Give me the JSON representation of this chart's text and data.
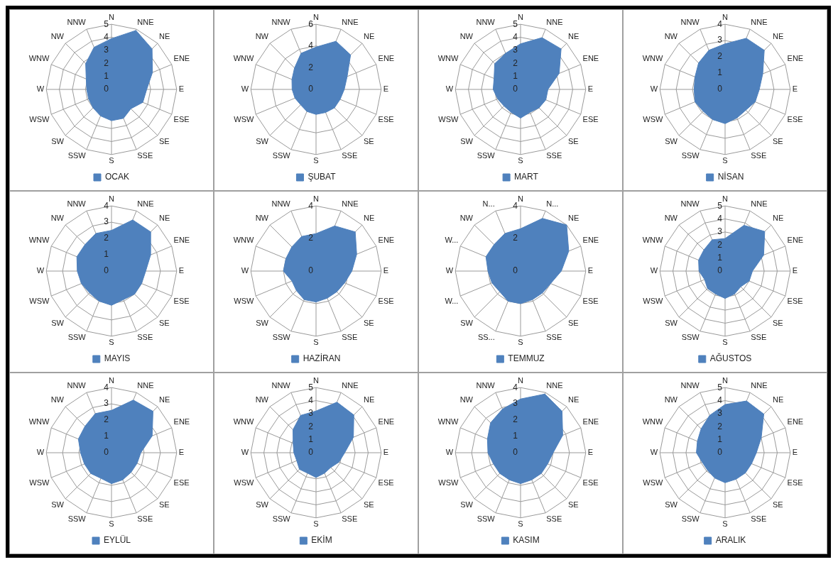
{
  "chart_data": [
    {
      "type": "radar",
      "categories": [
        "N",
        "NNE",
        "NE",
        "ENE",
        "E",
        "ESE",
        "SE",
        "SSE",
        "S",
        "SSW",
        "SW",
        "WSW",
        "W",
        "WNW",
        "NW",
        "NNW"
      ],
      "series": [
        {
          "name": "OCAK",
          "color": "#4f81bd",
          "values": [
            3.9,
            4.9,
            4.4,
            3.4,
            2.7,
            2.6,
            2.1,
            2.4,
            2.4,
            2.2,
            2.0,
            1.9,
            1.9,
            2.1,
            2.8,
            3.5
          ]
        }
      ],
      "ylim": [
        0,
        5
      ],
      "yticks": [
        0,
        1,
        2,
        3,
        4,
        5
      ],
      "grid": true,
      "legend": "bottom",
      "marker": "none"
    },
    {
      "type": "radar",
      "categories": [
        "N",
        "NNE",
        "NE",
        "ENE",
        "E",
        "ESE",
        "SE",
        "SSE",
        "S",
        "SSW",
        "SW",
        "WSW",
        "W",
        "WNW",
        "NW",
        "NNW"
      ],
      "series": [
        {
          "name": "ŞUBAT",
          "color": "#4f81bd",
          "values": [
            3.9,
            4.8,
            4.5,
            3.1,
            2.6,
            2.4,
            2.4,
            2.3,
            2.3,
            2.2,
            2.0,
            2.1,
            2.2,
            2.4,
            2.8,
            3.6
          ]
        }
      ],
      "ylim": [
        0,
        6
      ],
      "yticks": [
        0,
        2,
        4,
        6
      ],
      "grid": true,
      "legend": "bottom",
      "marker": "none"
    },
    {
      "type": "radar",
      "categories": [
        "N",
        "NNE",
        "NE",
        "ENE",
        "E",
        "ESE",
        "SE",
        "SSE",
        "S",
        "SSW",
        "SW",
        "WSW",
        "W",
        "WNW",
        "NW",
        "NNW"
      ],
      "series": [
        {
          "name": "MART",
          "color": "#4f81bd",
          "values": [
            3.5,
            4.3,
            4.4,
            3.2,
            2.1,
            2.1,
            2.0,
            1.9,
            2.2,
            1.9,
            1.8,
            1.9,
            2.1,
            2.2,
            2.8,
            3.0
          ]
        }
      ],
      "ylim": [
        0,
        5
      ],
      "yticks": [
        0,
        1,
        2,
        3,
        4,
        5
      ],
      "grid": true,
      "legend": "bottom",
      "marker": "none"
    },
    {
      "type": "radar",
      "categories": [
        "N",
        "NNE",
        "NE",
        "ENE",
        "E",
        "ESE",
        "SE",
        "SSE",
        "S",
        "SSW",
        "SW",
        "WSW",
        "W",
        "WNW",
        "NW",
        "NNW"
      ],
      "series": [
        {
          "name": "NİSAN",
          "color": "#4f81bd",
          "values": [
            2.8,
            3.4,
            3.4,
            2.5,
            2.1,
            2.0,
            1.8,
            1.9,
            2.1,
            2.0,
            1.9,
            2.0,
            1.9,
            2.0,
            2.3,
            2.6
          ]
        }
      ],
      "ylim": [
        0,
        4
      ],
      "yticks": [
        0,
        1,
        2,
        3,
        4
      ],
      "grid": true,
      "legend": "bottom",
      "marker": "none"
    },
    {
      "type": "radar",
      "categories": [
        "N",
        "NNE",
        "NE",
        "ENE",
        "E",
        "ESE",
        "SE",
        "SSE",
        "S",
        "SSW",
        "SW",
        "WSW",
        "W",
        "WNW",
        "NW",
        "NNW"
      ],
      "series": [
        {
          "name": "MAYIS",
          "color": "#4f81bd",
          "values": [
            2.5,
            3.4,
            3.4,
            2.6,
            2.1,
            2.0,
            2.0,
            1.9,
            2.1,
            2.0,
            1.9,
            2.0,
            2.1,
            2.3,
            2.3,
            2.5
          ]
        }
      ],
      "ylim": [
        0,
        4
      ],
      "yticks": [
        0,
        1,
        2,
        3,
        4
      ],
      "grid": true,
      "legend": "bottom",
      "marker": "none"
    },
    {
      "type": "radar",
      "categories": [
        "N",
        "NNE",
        "NE",
        "ENE",
        "E",
        "ESE",
        "SE",
        "SSE",
        "S",
        "SSW",
        "SW",
        "WSW",
        "W",
        "WNW",
        "NW",
        "NNW"
      ],
      "series": [
        {
          "name": "HAZİRAN",
          "color": "#4f81bd",
          "values": [
            2.3,
            3.0,
            3.4,
            2.7,
            2.2,
            1.9,
            1.8,
            1.8,
            1.9,
            1.9,
            1.7,
            1.6,
            2.0,
            2.0,
            2.1,
            2.3
          ]
        }
      ],
      "ylim": [
        0,
        4
      ],
      "yticks": [
        0,
        2,
        4
      ],
      "grid": true,
      "legend": "bottom",
      "marker": "none"
    },
    {
      "type": "radar",
      "categories": [
        "N",
        "N...",
        "NE",
        "ENE",
        "E",
        "ESE",
        "SE",
        "SSE",
        "S",
        "SS...",
        "SW",
        "W...",
        "W",
        "W...",
        "NW",
        "N..."
      ],
      "series": [
        {
          "name": "TEMMUZ",
          "color": "#4f81bd",
          "values": [
            2.6,
            3.5,
            4.0,
            3.2,
            2.5,
            2.0,
            1.9,
            1.9,
            2.0,
            2.0,
            1.8,
            1.9,
            2.0,
            2.3,
            2.3,
            2.5
          ]
        }
      ],
      "ylim": [
        0,
        4
      ],
      "yticks": [
        0,
        2,
        4
      ],
      "grid": true,
      "legend": "bottom",
      "marker": "none"
    },
    {
      "type": "radar",
      "categories": [
        "N",
        "NNE",
        "NE",
        "ENE",
        "E",
        "ESE",
        "SE",
        "SSE",
        "S",
        "SSW",
        "SW",
        "WSW",
        "W",
        "WNW",
        "NW",
        "NNW"
      ],
      "series": [
        {
          "name": "AĞUSTOS",
          "color": "#4f81bd",
          "values": [
            2.5,
            3.8,
            4.3,
            3.2,
            2.1,
            2.0,
            1.7,
            1.9,
            2.1,
            1.9,
            1.9,
            1.7,
            2.0,
            2.2,
            2.3,
            2.6
          ]
        }
      ],
      "ylim": [
        0,
        5
      ],
      "yticks": [
        0,
        1,
        2,
        3,
        4,
        5
      ],
      "grid": true,
      "legend": "bottom",
      "marker": "none"
    },
    {
      "type": "radar",
      "categories": [
        "N",
        "NNE",
        "NE",
        "ENE",
        "E",
        "ESE",
        "SE",
        "SSE",
        "S",
        "SSW",
        "SW",
        "WSW",
        "W",
        "WNW",
        "NW",
        "NNW"
      ],
      "series": [
        {
          "name": "EYLÜL",
          "color": "#4f81bd",
          "values": [
            2.6,
            3.5,
            3.6,
            2.7,
            1.8,
            1.7,
            1.7,
            1.8,
            1.9,
            1.7,
            1.8,
            1.8,
            1.9,
            2.2,
            2.3,
            2.6
          ]
        }
      ],
      "ylim": [
        0,
        4
      ],
      "yticks": [
        0,
        1,
        2,
        3,
        4
      ],
      "grid": true,
      "legend": "bottom",
      "marker": "none"
    },
    {
      "type": "radar",
      "categories": [
        "N",
        "NNE",
        "NE",
        "ENE",
        "E",
        "ESE",
        "SE",
        "SSE",
        "S",
        "SSW",
        "SW",
        "WSW",
        "W",
        "WNW",
        "NW",
        "NNW"
      ],
      "series": [
        {
          "name": "EKİM",
          "color": "#4f81bd",
          "values": [
            3.2,
            4.2,
            4.1,
            3.1,
            2.2,
            1.9,
            1.6,
            1.7,
            1.9,
            1.7,
            1.8,
            1.6,
            1.7,
            1.9,
            2.5,
            3.1
          ]
        }
      ],
      "ylim": [
        0,
        5
      ],
      "yticks": [
        0,
        1,
        2,
        3,
        4,
        5
      ],
      "grid": true,
      "legend": "bottom",
      "marker": "none"
    },
    {
      "type": "radar",
      "categories": [
        "N",
        "NNE",
        "NE",
        "ENE",
        "E",
        "ESE",
        "SE",
        "SSE",
        "S",
        "SSW",
        "SW",
        "WSW",
        "W",
        "WNW",
        "NW",
        "NNW"
      ],
      "series": [
        {
          "name": "KASIM",
          "color": "#4f81bd",
          "values": [
            3.3,
            3.9,
            3.6,
            2.8,
            2.0,
            1.8,
            1.8,
            1.8,
            1.9,
            1.8,
            1.8,
            1.8,
            2.0,
            2.2,
            2.6,
            2.9
          ]
        }
      ],
      "ylim": [
        0,
        4
      ],
      "yticks": [
        0,
        1,
        2,
        3,
        4
      ],
      "grid": true,
      "legend": "bottom",
      "marker": "none"
    },
    {
      "type": "radar",
      "categories": [
        "N",
        "NNE",
        "NE",
        "ENE",
        "E",
        "ESE",
        "SE",
        "SSE",
        "S",
        "SSW",
        "SW",
        "WSW",
        "W",
        "WNW",
        "NW",
        "NNW"
      ],
      "series": [
        {
          "name": "ARALIK",
          "color": "#4f81bd",
          "values": [
            3.7,
            4.3,
            4.2,
            3.0,
            2.4,
            2.2,
            2.2,
            2.2,
            2.3,
            2.1,
            1.9,
            1.9,
            2.2,
            2.3,
            2.6,
            3.1
          ]
        }
      ],
      "ylim": [
        0,
        5
      ],
      "yticks": [
        0,
        1,
        2,
        3,
        4,
        5
      ],
      "grid": true,
      "legend": "bottom",
      "marker": "none"
    }
  ]
}
